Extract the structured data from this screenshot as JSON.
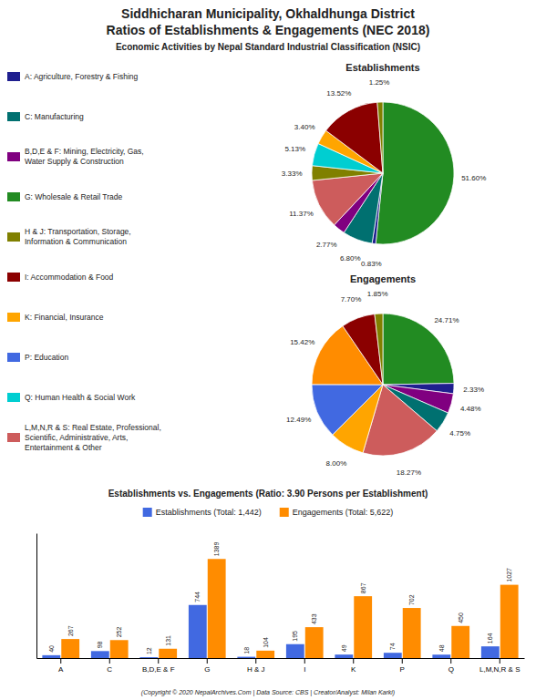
{
  "chart_data": [
    {
      "type": "pie",
      "title": "Establishments",
      "annotations": [
        "Siddhicharan Municipality, Okhaldhunga District",
        "Ratios of Establishments & Engagements (NEC 2018)",
        "Economic Activities by Nepal Standard Industrial Classification (NSIC)",
        "(Copyright © 2020 NepalArchives.Com | Data Source: CBS | Creator/Analyst: Milan Karki)"
      ],
      "values": [
        51.6,
        0.83,
        6.8,
        2.77,
        11.37,
        3.33,
        5.13,
        3.4,
        13.52,
        1.25
      ],
      "value_labels": [
        "51.60%",
        "0.83%",
        "6.80%",
        "2.77%",
        "11.37%",
        "3.33%",
        "5.13%",
        "3.40%",
        "13.52%",
        "1.25%"
      ],
      "colors": [
        "#228B22",
        "#1F1F8F",
        "#007070",
        "#800080",
        "#CD5C5C",
        "#808000",
        "#00CED1",
        "#FFA500",
        "#8B0000",
        "#808000"
      ],
      "data_labels": true,
      "legend": "left",
      "series": [
        {
          "name": "A: Agriculture, Forestry & Fishing",
          "color": "#1F1F8F"
        },
        {
          "name": "C: Manufacturing",
          "color": "#007070"
        },
        {
          "name": "B,D,E & F: Mining, Electricity, Gas,\nWater Supply & Construction",
          "color": "#800080"
        },
        {
          "name": "G: Wholesale & Retail Trade",
          "color": "#228B22"
        },
        {
          "name": "H & J: Transportation, Storage,\nInformation & Communication",
          "color": "#808000"
        },
        {
          "name": "I: Accommodation & Food",
          "color": "#8B0000"
        },
        {
          "name": "K: Financial, Insurance",
          "color": "#FFA500"
        },
        {
          "name": "P: Education",
          "color": "#4169E1"
        },
        {
          "name": "Q: Human Health & Social Work",
          "color": "#00CED1"
        },
        {
          "name": "L,M,N,R & S: Real Estate, Professional,\nScientific, Administrative, Arts,\nEntertainment & Other",
          "color": "#CD5C5C"
        }
      ]
    },
    {
      "type": "pie",
      "title": "Engagements",
      "values": [
        24.71,
        2.33,
        4.48,
        4.75,
        18.27,
        8.0,
        12.49,
        15.42,
        7.7,
        1.85
      ],
      "value_labels": [
        "24.71%",
        "2.33%",
        "4.48%",
        "4.75%",
        "18.27%",
        "8.00%",
        "12.49%",
        "15.42%",
        "7.70%",
        "1.85%"
      ],
      "colors": [
        "#228B22",
        "#1F1F8F",
        "#800080",
        "#007070",
        "#CD5C5C",
        "#FFA500",
        "#4169E1",
        "#FF8C00",
        "#8B0000",
        "#808000"
      ],
      "data_labels": true
    },
    {
      "type": "bar",
      "title": "Establishments vs. Engagements (Ratio: 3.90 Persons per Establishment)",
      "categories": [
        "A",
        "C",
        "B,D,E & F",
        "G",
        "H & J",
        "I",
        "K",
        "P",
        "Q",
        "L,M,N,R & S"
      ],
      "series": [
        {
          "name": "Establishments (Total: 1,442)",
          "color": "#4169E1",
          "values": [
            40,
            98,
            12,
            744,
            18,
            195,
            49,
            74,
            48,
            164
          ]
        },
        {
          "name": "Engagements (Total: 5,622)",
          "color": "#FF8C00",
          "values": [
            267,
            252,
            131,
            1389,
            104,
            433,
            867,
            702,
            450,
            1027
          ]
        }
      ],
      "ylim": [
        0,
        1750
      ],
      "data_labels": true,
      "legend": "top",
      "tick_labels": "x",
      "grid": false
    }
  ]
}
